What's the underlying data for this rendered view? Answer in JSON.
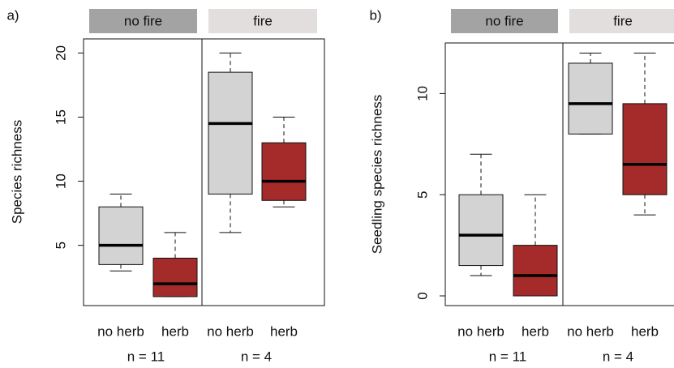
{
  "chart_data": [
    {
      "type": "box",
      "panel_label": "a)",
      "y_label": "Species richness",
      "strips": [
        "no fire",
        "fire"
      ],
      "strip_colors": [
        "#a3a3a3",
        "#e2dedd"
      ],
      "categories": [
        "no herb",
        "herb",
        "no herb",
        "herb"
      ],
      "n_labels": [
        "n = 11",
        "n = 4"
      ],
      "colors": [
        "#d3d3d3",
        "#a52a2a",
        "#d3d3d3",
        "#a52a2a"
      ],
      "boxes": [
        {
          "min": 3,
          "q1": 3.5,
          "median": 5,
          "q3": 8,
          "max": 9
        },
        {
          "min": 1,
          "q1": 1,
          "median": 2,
          "q3": 4,
          "max": 6
        },
        {
          "min": 6,
          "q1": 9,
          "median": 14.5,
          "q3": 18.5,
          "max": 20
        },
        {
          "min": 8,
          "q1": 8.5,
          "median": 10,
          "q3": 13,
          "max": 15
        }
      ],
      "ylim": [
        0.3,
        21.1
      ],
      "yticks": [
        5,
        10,
        15,
        20
      ]
    },
    {
      "type": "box",
      "panel_label": "b)",
      "y_label": "Seedling species richness",
      "strips": [
        "no fire",
        "fire"
      ],
      "strip_colors": [
        "#a3a3a3",
        "#e2dedd"
      ],
      "categories": [
        "no herb",
        "herb",
        "no herb",
        "herb"
      ],
      "n_labels": [
        "n = 11",
        "n = 4"
      ],
      "colors": [
        "#d3d3d3",
        "#a52a2a",
        "#d3d3d3",
        "#a52a2a"
      ],
      "boxes": [
        {
          "min": 1,
          "q1": 1.5,
          "median": 3,
          "q3": 5,
          "max": 7
        },
        {
          "min": 0,
          "q1": 0,
          "median": 1,
          "q3": 2.5,
          "max": 5
        },
        {
          "min": 8,
          "q1": 8,
          "median": 9.5,
          "q3": 11.5,
          "max": 12
        },
        {
          "min": 4,
          "q1": 5,
          "median": 6.5,
          "q3": 9.5,
          "max": 12
        }
      ],
      "ylim": [
        -0.48,
        12.5
      ],
      "yticks": [
        0,
        5,
        10
      ]
    }
  ]
}
